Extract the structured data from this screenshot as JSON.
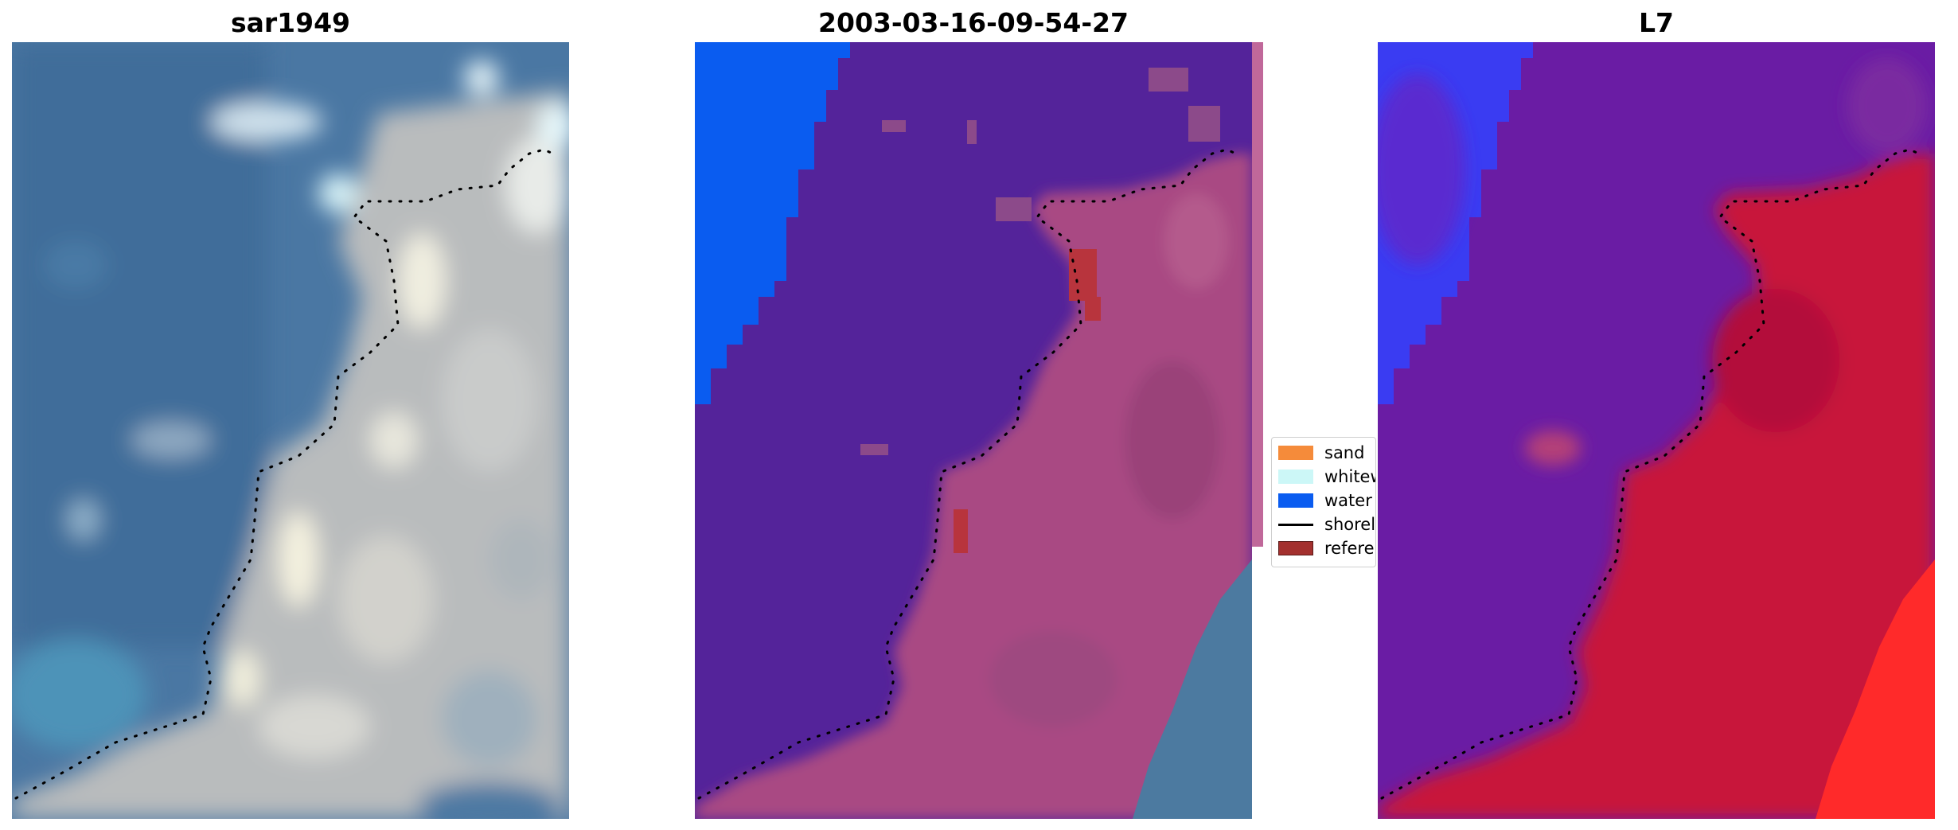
{
  "panels": [
    {
      "title": "sar1949",
      "kind": "rgb"
    },
    {
      "title": "2003-03-16-09-54-27",
      "kind": "classified"
    },
    {
      "title": "L7",
      "kind": "index"
    }
  ],
  "legend": {
    "items": [
      {
        "label": "sand",
        "color": "#f58b3a",
        "type": "patch"
      },
      {
        "label": "whitewater",
        "color": "#ccf7f7",
        "type": "patch"
      },
      {
        "label": "water",
        "color": "#0a5cf0",
        "type": "patch"
      },
      {
        "label": "shoreline",
        "color": "#000000",
        "type": "line"
      },
      {
        "label": "reference shoreline",
        "color": "#a3302e",
        "type": "patch"
      }
    ]
  },
  "colors": {
    "water_class": "#0a5cf0",
    "classified_water_region": "#54239a",
    "classified_land": "#a94a83",
    "reference_patch": "#b8343d",
    "index_blue": "#3a3cf2",
    "index_purple": "#6a1ca4",
    "index_red": "#c8123a",
    "index_bright_red": "#ff2a2a",
    "ocean_rgb": "#4a77a3",
    "land_rgb": "#c4c5c2"
  }
}
